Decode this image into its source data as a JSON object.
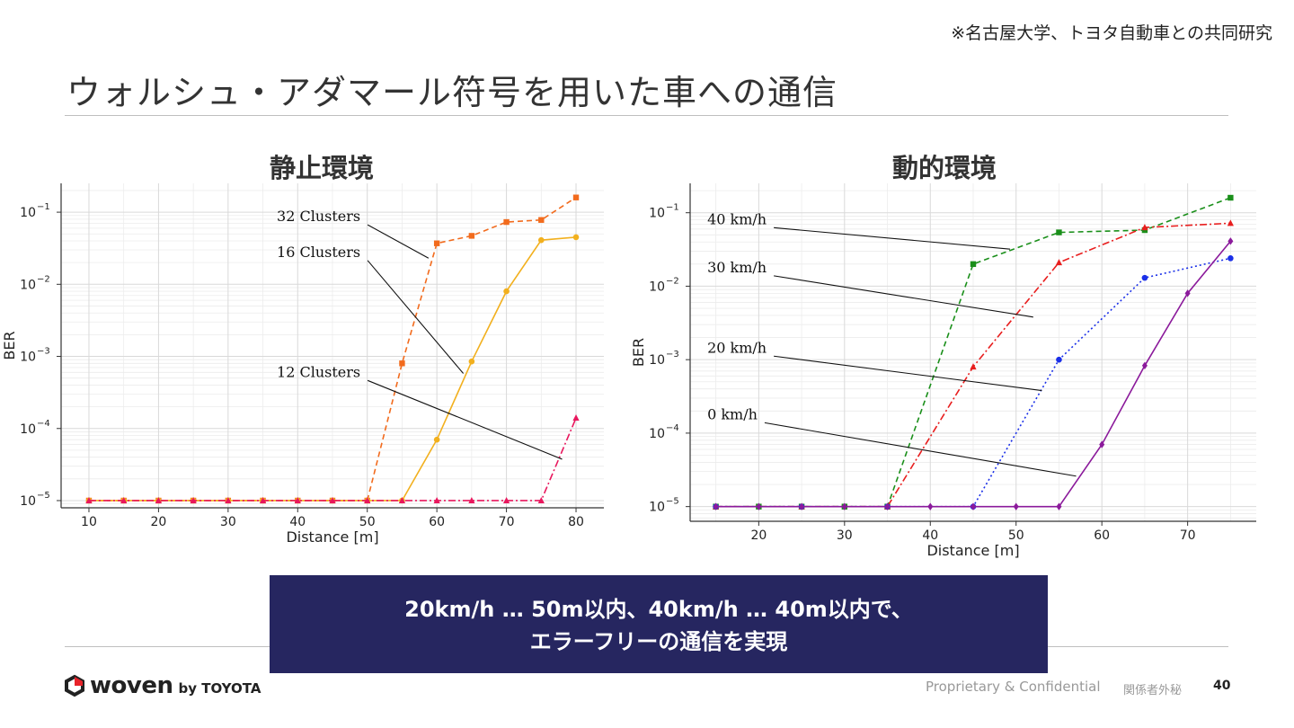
{
  "header": {
    "note": "※名古屋大学、トヨタ自動車との共同研究",
    "title": "ウォルシュ・アダマール符号を用いた車への通信"
  },
  "chart_data": [
    {
      "type": "line",
      "title": "静止環境",
      "xlabel": "Distance [m]",
      "ylabel": "BER",
      "yscale": "log",
      "xlim": [
        6,
        84
      ],
      "ylim_exp": [
        -5.1,
        -0.6
      ],
      "x_ticks": [
        10,
        20,
        30,
        40,
        50,
        60,
        70,
        80
      ],
      "y_ticks": [
        {
          "exp": -5,
          "label": "10",
          "sup": "−5"
        },
        {
          "exp": -4,
          "label": "10",
          "sup": "−4"
        },
        {
          "exp": -3,
          "label": "10",
          "sup": "−3"
        },
        {
          "exp": -2,
          "label": "10",
          "sup": "−2"
        },
        {
          "exp": -1,
          "label": "10",
          "sup": "−1"
        }
      ],
      "series": [
        {
          "name": "32 Clusters",
          "color": "#f26b1d",
          "dash": "6,4",
          "marker": "square",
          "x": [
            10,
            15,
            20,
            25,
            30,
            35,
            40,
            45,
            50,
            55,
            60,
            65,
            70,
            75,
            80
          ],
          "y": [
            1e-05,
            1e-05,
            1e-05,
            1e-05,
            1e-05,
            1e-05,
            1e-05,
            1e-05,
            1e-05,
            0.0008,
            0.037,
            0.047,
            0.073,
            0.078,
            0.16
          ]
        },
        {
          "name": "16 Clusters",
          "color": "#f2b01e",
          "dash": "",
          "marker": "circle",
          "x": [
            10,
            15,
            20,
            25,
            30,
            35,
            40,
            45,
            50,
            55,
            60,
            65,
            70,
            75,
            80
          ],
          "y": [
            1e-05,
            1e-05,
            1e-05,
            1e-05,
            1e-05,
            1e-05,
            1e-05,
            1e-05,
            1e-05,
            1e-05,
            7e-05,
            0.00085,
            0.008,
            0.041,
            0.045
          ]
        },
        {
          "name": "12 Clusters",
          "color": "#e8175d",
          "dash": "8,3,2,3",
          "marker": "triangle",
          "x": [
            10,
            15,
            20,
            25,
            30,
            35,
            40,
            45,
            50,
            55,
            60,
            65,
            70,
            75,
            80
          ],
          "y": [
            1e-05,
            1e-05,
            1e-05,
            1e-05,
            1e-05,
            1e-05,
            1e-05,
            1e-05,
            1e-05,
            1e-05,
            1e-05,
            1e-05,
            1e-05,
            1e-05,
            0.00014
          ]
        }
      ],
      "annotations": [
        {
          "text": "32 Clusters",
          "x": 37,
          "y": 0.075,
          "tx": 58.8,
          "ty": 0.023
        },
        {
          "text": "16 Clusters",
          "x": 37,
          "y": 0.024,
          "tx": 63.8,
          "ty": 0.00058
        },
        {
          "text": "12 Clusters",
          "x": 37,
          "y": 0.00052,
          "tx": 78,
          "ty": 3.75e-05
        }
      ]
    },
    {
      "type": "line",
      "title": "動的環境",
      "xlabel": "Distance [m]",
      "ylabel": "BER",
      "yscale": "log",
      "xlim": [
        12,
        78
      ],
      "ylim_exp": [
        -5.2,
        -0.6
      ],
      "x_ticks": [
        20,
        30,
        40,
        50,
        60,
        70
      ],
      "y_ticks": [
        {
          "exp": -5,
          "label": "10",
          "sup": "−5"
        },
        {
          "exp": -4,
          "label": "10",
          "sup": "−4"
        },
        {
          "exp": -3,
          "label": "10",
          "sup": "−3"
        },
        {
          "exp": -2,
          "label": "10",
          "sup": "−2"
        },
        {
          "exp": -1,
          "label": "10",
          "sup": "−1"
        }
      ],
      "series": [
        {
          "name": "40 km/h",
          "color": "#1a8f1a",
          "dash": "6,4",
          "marker": "square",
          "x": [
            15,
            20,
            25,
            30,
            35,
            40,
            45,
            50,
            55,
            60,
            65,
            70,
            75
          ],
          "y": [
            1e-05,
            1e-05,
            1e-05,
            1e-05,
            1e-05,
            null,
            0.02,
            null,
            0.054,
            null,
            0.058,
            null,
            0.16
          ]
        },
        {
          "name": "30 km/h",
          "color": "#e81e1e",
          "dash": "8,3,2,3",
          "marker": "triangle",
          "x": [
            15,
            25,
            35,
            45,
            55,
            65,
            75
          ],
          "y": [
            1e-05,
            1e-05,
            1e-05,
            0.0008,
            0.021,
            0.063,
            0.072
          ]
        },
        {
          "name": "20 km/h",
          "color": "#1a2fe8",
          "dash": "2,3",
          "marker": "circle",
          "x": [
            15,
            25,
            35,
            45,
            55,
            65,
            75
          ],
          "y": [
            1e-05,
            1e-05,
            1e-05,
            1e-05,
            0.001,
            0.013,
            0.024
          ]
        },
        {
          "name": "0 km/h",
          "color": "#8b1a9b",
          "dash": "",
          "marker": "diamond",
          "x": [
            15,
            20,
            25,
            30,
            35,
            40,
            45,
            50,
            55,
            60,
            65,
            70,
            75
          ],
          "y": [
            1e-05,
            1e-05,
            1e-05,
            1e-05,
            1e-05,
            1e-05,
            1e-05,
            1e-05,
            1e-05,
            7e-05,
            0.00083,
            0.008,
            0.041
          ]
        }
      ],
      "annotations": [
        {
          "text": "40 km/h",
          "x": 14,
          "y": 0.07,
          "tx": 49.3,
          "ty": 0.032
        },
        {
          "text": "30 km/h",
          "x": 14,
          "y": 0.0155,
          "tx": 52,
          "ty": 0.0038
        },
        {
          "text": "20 km/h",
          "x": 14,
          "y": 0.00125,
          "tx": 53,
          "ty": 0.00038
        },
        {
          "text": "0 km/h",
          "x": 14,
          "y": 0.000155,
          "tx": 57,
          "ty": 2.6e-05
        }
      ]
    }
  ],
  "banner": {
    "line1": "20km/h … 50m以内、40km/h … 40m以内で、",
    "line2": "エラーフリーの通信を実現"
  },
  "footer": {
    "brand": "woven",
    "by": "by TOYOTA",
    "confidential": "Proprietary & Confidential",
    "internal": "関係者外秘",
    "page": "40"
  }
}
